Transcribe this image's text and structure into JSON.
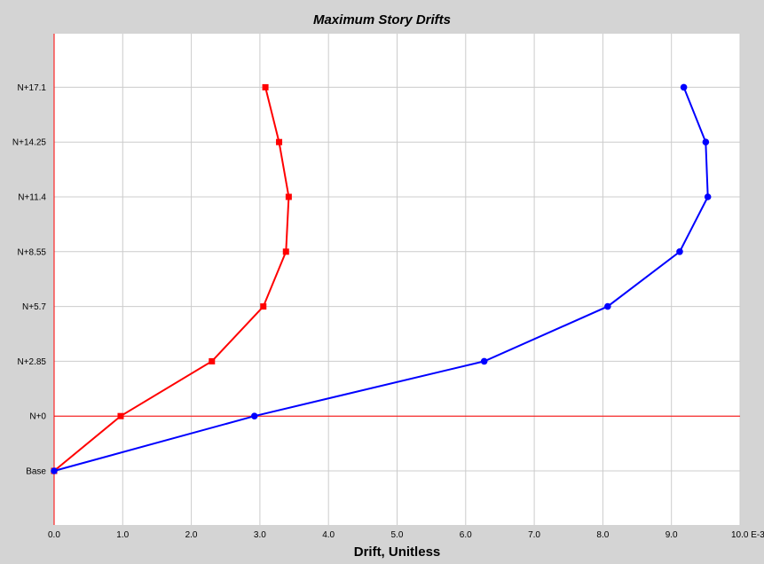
{
  "chart_data": {
    "type": "line",
    "title": "Maximum Story Drifts",
    "xlabel": "Drift, Unitless",
    "ylabel": "",
    "x_ticks": [
      "0.0",
      "1.0",
      "2.0",
      "3.0",
      "4.0",
      "5.0",
      "6.0",
      "7.0",
      "8.0",
      "9.0",
      "10.0 E-3"
    ],
    "xlim": [
      0,
      10
    ],
    "y_categories": [
      "Base",
      "N+0",
      "N+2.85",
      "N+5.7",
      "N+8.55",
      "N+11.4",
      "N+14.25",
      "N+17.1"
    ],
    "grid": true,
    "series": [
      {
        "color": "#ff0000",
        "marker": "square",
        "x": [
          0.0,
          0.97,
          2.3,
          3.05,
          3.38,
          3.42,
          3.28,
          3.08
        ],
        "y": [
          "Base",
          "N+0",
          "N+2.85",
          "N+5.7",
          "N+8.55",
          "N+11.4",
          "N+14.25",
          "N+17.1"
        ]
      },
      {
        "color": "#0000ff",
        "marker": "circle",
        "x": [
          0.0,
          2.92,
          6.27,
          8.07,
          9.12,
          9.53,
          9.5,
          9.18
        ],
        "y": [
          "Base",
          "N+0",
          "N+2.85",
          "N+5.7",
          "N+8.55",
          "N+11.4",
          "N+14.25",
          "N+17.1"
        ]
      }
    ],
    "reference_lines": {
      "vertical_at_x": 0,
      "horizontal_at_y": "N+0",
      "color": "#ff0000"
    }
  }
}
